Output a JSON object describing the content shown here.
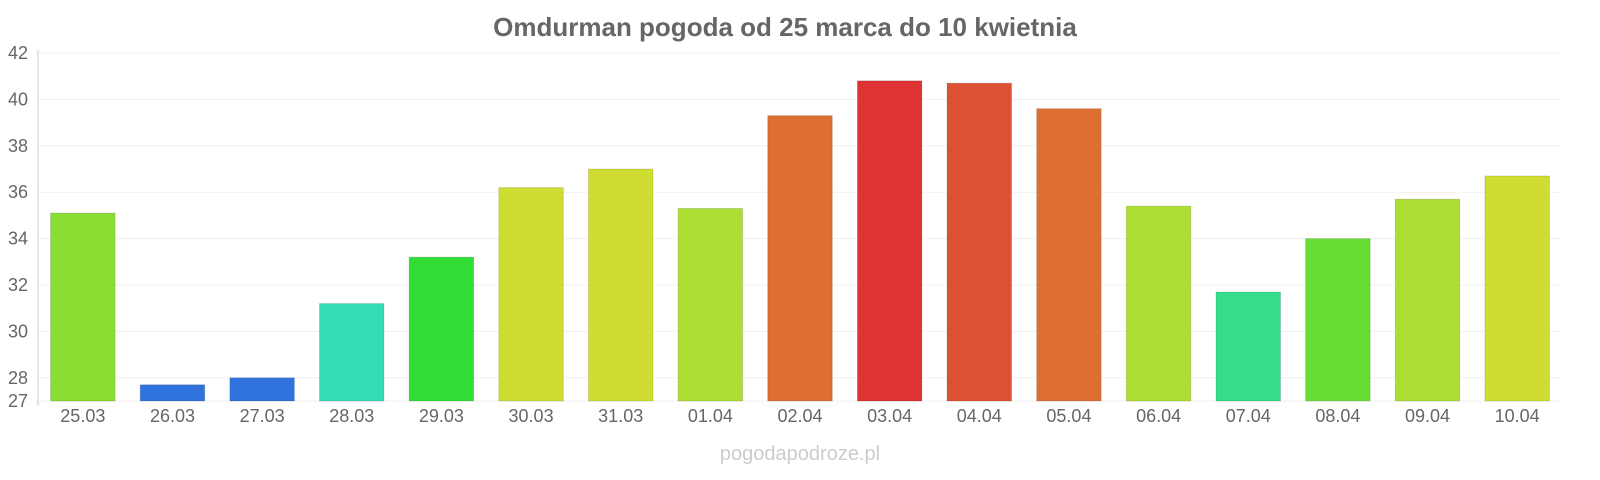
{
  "chart_data": {
    "type": "bar",
    "title": "Omdurman pogoda od 25 marca do 10 kwietnia",
    "xlabel": "",
    "ylabel": "",
    "ylim": [
      27,
      42
    ],
    "yticks": [
      27,
      28,
      30,
      32,
      34,
      36,
      38,
      40,
      42
    ],
    "grid": true,
    "categories": [
      "25.03",
      "26.03",
      "27.03",
      "28.03",
      "29.03",
      "30.03",
      "31.03",
      "01.04",
      "02.04",
      "03.04",
      "04.04",
      "05.04",
      "06.04",
      "07.04",
      "08.04",
      "09.04",
      "10.04"
    ],
    "values": [
      35.1,
      27.7,
      28.0,
      31.2,
      33.2,
      36.2,
      37.0,
      35.3,
      39.3,
      40.8,
      40.7,
      39.6,
      35.4,
      31.7,
      34.0,
      35.7,
      36.7
    ],
    "colors": [
      "#8add33",
      "#3173dd",
      "#3173dd",
      "#35dcb8",
      "#33dd35",
      "#cfdd33",
      "#cfdd33",
      "#acdd33",
      "#dd6f33",
      "#dd3333",
      "#dd5133",
      "#dd6f33",
      "#acdd33",
      "#35dc8a",
      "#66dd33",
      "#acdd33",
      "#cfdd33"
    ]
  },
  "watermark": "pogodapodroze.pl"
}
